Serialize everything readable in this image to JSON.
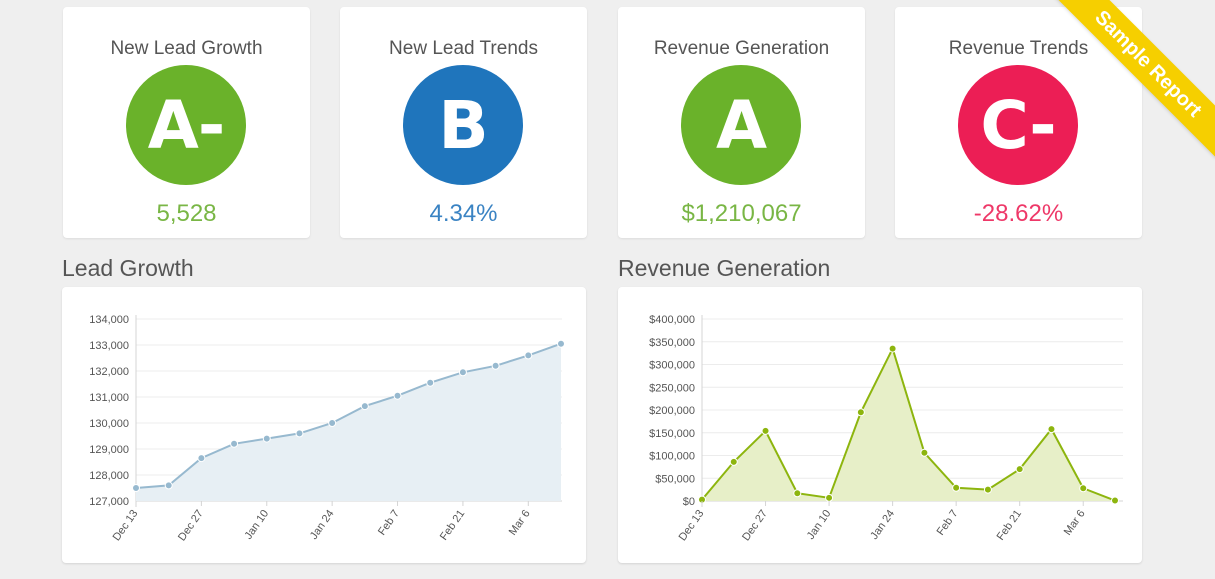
{
  "ribbon": {
    "text": "Sample Report",
    "color": "#f6cf00"
  },
  "cards": [
    {
      "title": "New Lead Growth",
      "grade": "A-",
      "value": "5,528",
      "color": "#6ab22a",
      "value_color": "#79b645"
    },
    {
      "title": "New Lead Trends",
      "grade": "B",
      "value": "4.34%",
      "color": "#1f75bc",
      "value_color": "#3a83c3"
    },
    {
      "title": "Revenue Generation",
      "grade": "A",
      "value": "$1,210,067",
      "color": "#6ab22a",
      "value_color": "#79b645"
    },
    {
      "title": "Revenue Trends",
      "grade": "C-",
      "value": "-28.62%",
      "color": "#ec1e55",
      "value_color": "#ee3868"
    }
  ],
  "sections": {
    "lead_growth_title": "Lead Growth",
    "revenue_title": "Revenue Generation"
  },
  "chart_data": [
    {
      "type": "area",
      "title": "Lead Growth",
      "xlabel": "",
      "ylabel": "",
      "x": [
        "Dec 13",
        "Dec 20",
        "Dec 27",
        "Jan 3",
        "Jan 10",
        "Jan 17",
        "Jan 24",
        "Jan 31",
        "Feb 7",
        "Feb 14",
        "Feb 21",
        "Feb 28",
        "Mar 6",
        "Mar 13"
      ],
      "x_tick_labels": [
        "Dec 13",
        "Dec 27",
        "Jan 10",
        "Jan 24",
        "Feb 7",
        "Feb 21",
        "Mar 6"
      ],
      "y_tick_labels": [
        "134,000",
        "133,000",
        "132,000",
        "131,000",
        "130,000",
        "129,000",
        "128,000",
        "127,000"
      ],
      "ylim": [
        127000,
        134000
      ],
      "yticks": [
        127000,
        128000,
        129000,
        130000,
        131000,
        132000,
        133000,
        134000
      ],
      "series": [
        {
          "values": [
            127500,
            127600,
            128650,
            129200,
            129400,
            129600,
            130000,
            130650,
            131050,
            131550,
            131950,
            132200,
            132600,
            133050
          ]
        }
      ],
      "line_color": "#97b9cf",
      "fill_color": "#e7eff4",
      "grid": true
    },
    {
      "type": "area",
      "title": "Revenue Generation",
      "xlabel": "",
      "ylabel": "",
      "x": [
        "Dec 13",
        "Dec 20",
        "Dec 27",
        "Jan 3",
        "Jan 10",
        "Jan 17",
        "Jan 24",
        "Jan 31",
        "Feb 7",
        "Feb 14",
        "Feb 21",
        "Feb 28",
        "Mar 6",
        "Mar 13"
      ],
      "x_tick_labels": [
        "Dec 13",
        "Dec 27",
        "Jan 10",
        "Jan 24",
        "Feb 7",
        "Feb 21",
        "Mar 6"
      ],
      "y_tick_labels": [
        "$400,000",
        "$350,000",
        "$300,000",
        "$250,000",
        "$200,000",
        "$150,000",
        "$100,000",
        "$50,000",
        "$0"
      ],
      "ylim": [
        0,
        400000
      ],
      "yticks": [
        0,
        50000,
        100000,
        150000,
        200000,
        250000,
        300000,
        350000,
        400000
      ],
      "series": [
        {
          "values": [
            3000,
            86000,
            154000,
            17000,
            7000,
            195000,
            335000,
            106000,
            29000,
            25000,
            70000,
            158000,
            28000,
            1000
          ]
        }
      ],
      "line_color": "#8db50e",
      "fill_color": "#e7efc8",
      "grid": true
    }
  ]
}
